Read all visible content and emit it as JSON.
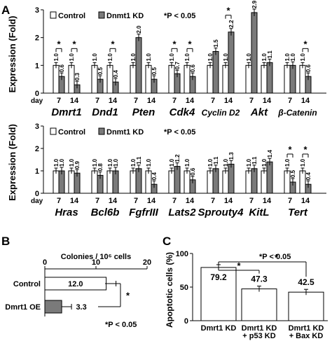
{
  "chart_data": [
    {
      "panel": "A",
      "type": "bar",
      "row": 1,
      "ylabel": "Expression (Fold)",
      "ylim": [
        0,
        3
      ],
      "yticks": [
        "0",
        "1",
        "2",
        "3"
      ],
      "day_label": "day",
      "legend": {
        "control": "Control",
        "kd": "Dnmt1 KD",
        "note": "*P < 0.05"
      },
      "series": [
        {
          "name": "Control",
          "color": "#ffffff"
        },
        {
          "name": "Dnmt1 KD",
          "color": "#7a7a7a"
        }
      ],
      "genes": [
        {
          "name": "Dmrt1",
          "days": [
            "7",
            "14"
          ],
          "control": [
            1.0,
            1.0
          ],
          "kd": [
            0.6,
            0.3
          ],
          "control_labels": [
            "1.0",
            "1.0"
          ],
          "kd_labels": [
            "0.6",
            "0.3"
          ],
          "sig": [
            "*",
            "*"
          ]
        },
        {
          "name": "Dnd1",
          "days": [
            "7",
            "14"
          ],
          "control": [
            1.0,
            1.0
          ],
          "kd": [
            0.5,
            0.4
          ],
          "control_labels": [
            "1.0",
            "1.0"
          ],
          "kd_labels": [
            "0.5",
            "0.4"
          ],
          "sig": [
            "",
            "*"
          ]
        },
        {
          "name": "Pten",
          "days": [
            "7",
            "14"
          ],
          "control": [
            1.0,
            1.0
          ],
          "kd": [
            2.0,
            0.5
          ],
          "control_labels": [
            "1.0",
            "1.0"
          ],
          "kd_labels": [
            "2.0",
            "0.5"
          ],
          "sig": [
            "",
            ""
          ]
        },
        {
          "name": "Cdk4",
          "days": [
            "7",
            "14"
          ],
          "control": [
            1.0,
            1.0
          ],
          "kd": [
            0.7,
            0.6
          ],
          "control_labels": [
            "1.0",
            "1.0"
          ],
          "kd_labels": [
            "0.7",
            "0.6"
          ],
          "sig": [
            "*",
            "*"
          ]
        },
        {
          "name": "Cyclin D2",
          "days": [
            "7",
            "14"
          ],
          "control": [
            1.0,
            1.0
          ],
          "kd": [
            1.5,
            2.2
          ],
          "control_labels": [
            "1.0",
            "1.0"
          ],
          "kd_labels": [
            "1.5",
            "2.2"
          ],
          "sig": [
            "",
            "*"
          ]
        },
        {
          "name": "Akt",
          "days": [
            "7",
            "14"
          ],
          "control": [
            1.0,
            1.0
          ],
          "kd": [
            2.9,
            1.1
          ],
          "control_labels": [
            "1.0",
            "1.0"
          ],
          "kd_labels": [
            "2.9",
            "1.1"
          ],
          "sig": [
            "*",
            ""
          ]
        },
        {
          "name": "β-Catenin",
          "days": [
            "7",
            "14"
          ],
          "control": [
            1.0,
            1.0
          ],
          "kd": [
            1.0,
            0.6
          ],
          "control_labels": [
            "1.0",
            "1.0"
          ],
          "kd_labels": [
            "1.0",
            "0.6"
          ],
          "sig": [
            "",
            "*"
          ]
        }
      ]
    },
    {
      "panel": "A",
      "type": "bar",
      "row": 2,
      "ylabel": "Expression (Fold)",
      "ylim": [
        0,
        3
      ],
      "yticks": [
        "0",
        "1",
        "2",
        "3"
      ],
      "day_label": "day",
      "legend": {
        "control": "Control",
        "kd": "Dnmt1 KD",
        "note": "*P < 0.05"
      },
      "series": [
        {
          "name": "Control",
          "color": "#ffffff"
        },
        {
          "name": "Dnmt1 KD",
          "color": "#7a7a7a"
        }
      ],
      "genes": [
        {
          "name": "Hras",
          "days": [
            "7",
            "14"
          ],
          "control": [
            1.0,
            1.0
          ],
          "kd": [
            1.0,
            0.9
          ],
          "control_labels": [
            "1.0",
            "1.0"
          ],
          "kd_labels": [
            "1.0",
            "0.9"
          ],
          "sig": [
            "",
            ""
          ]
        },
        {
          "name": "Bcl6b",
          "days": [
            "7",
            "14"
          ],
          "control": [
            1.0,
            1.0
          ],
          "kd": [
            0.8,
            1.0
          ],
          "control_labels": [
            "1.0",
            "1.0"
          ],
          "kd_labels": [
            "0.8",
            "1.0"
          ],
          "sig": [
            "",
            ""
          ]
        },
        {
          "name": "FgfrIII",
          "days": [
            "7",
            "14"
          ],
          "control": [
            1.0,
            1.0
          ],
          "kd": [
            1.1,
            0.4
          ],
          "control_labels": [
            "1.0",
            "1.0"
          ],
          "kd_labels": [
            "1.1",
            "0.4"
          ],
          "sig": [
            "",
            ""
          ]
        },
        {
          "name": "Lats2",
          "days": [
            "7",
            "14"
          ],
          "control": [
            1.0,
            1.0
          ],
          "kd": [
            1.2,
            0.6
          ],
          "control_labels": [
            "1.0",
            "1.0"
          ],
          "kd_labels": [
            "1.2",
            "0.6"
          ],
          "sig": [
            "",
            ""
          ]
        },
        {
          "name": "Sprouty4",
          "days": [
            "7",
            "14"
          ],
          "control": [
            1.0,
            1.0
          ],
          "kd": [
            1.1,
            1.3
          ],
          "control_labels": [
            "1.0",
            "1.0"
          ],
          "kd_labels": [
            "1.1",
            "1.3"
          ],
          "sig": [
            "",
            ""
          ]
        },
        {
          "name": "KitL",
          "days": [
            "7",
            "14"
          ],
          "control": [
            1.0,
            1.0
          ],
          "kd": [
            1.1,
            1.4
          ],
          "control_labels": [
            "1.0",
            "1.0"
          ],
          "kd_labels": [
            "1.1",
            "1.4"
          ],
          "sig": [
            "",
            ""
          ]
        },
        {
          "name": "Tert",
          "days": [
            "7",
            "14"
          ],
          "control": [
            1.0,
            1.0
          ],
          "kd": [
            0.5,
            0.4
          ],
          "control_labels": [
            "1.0",
            "1.0"
          ],
          "kd_labels": [
            "0.5",
            "0.4"
          ],
          "sig": [
            "*",
            "*"
          ]
        }
      ]
    },
    {
      "panel": "B",
      "type": "bar",
      "orientation": "horizontal",
      "xlabel": "Colonies / 10⁶ cells",
      "xlim": [
        0,
        20
      ],
      "xticks": [
        "0",
        "10",
        "20"
      ],
      "categories": [
        "Control",
        "Dmrt1 OE"
      ],
      "values": [
        12.0,
        3.3
      ],
      "value_labels": [
        "12.0",
        "3.3"
      ],
      "colors": [
        "#ffffff",
        "#7a7a7a"
      ],
      "significance": "*",
      "note": "*P < 0.05"
    },
    {
      "panel": "C",
      "type": "bar",
      "ylabel": "Apoptotic cells (%)",
      "ylim": [
        0,
        100
      ],
      "yticks": [
        "0",
        "50",
        "100"
      ],
      "categories": [
        {
          "lines": [
            "Dmrt1 KD"
          ]
        },
        {
          "lines": [
            "Dmrt1 KD",
            "+ p53 KD"
          ]
        },
        {
          "lines": [
            "Dmrt1 KD",
            "+ Bax KD"
          ]
        }
      ],
      "values": [
        79.2,
        47.3,
        42.5
      ],
      "value_labels": [
        "79.2",
        "47.3",
        "42.5"
      ],
      "significance": [
        "*",
        "*"
      ],
      "note": "*P < 0.05"
    }
  ],
  "panel_labels": {
    "a": "A",
    "b": "B",
    "c": "C"
  }
}
